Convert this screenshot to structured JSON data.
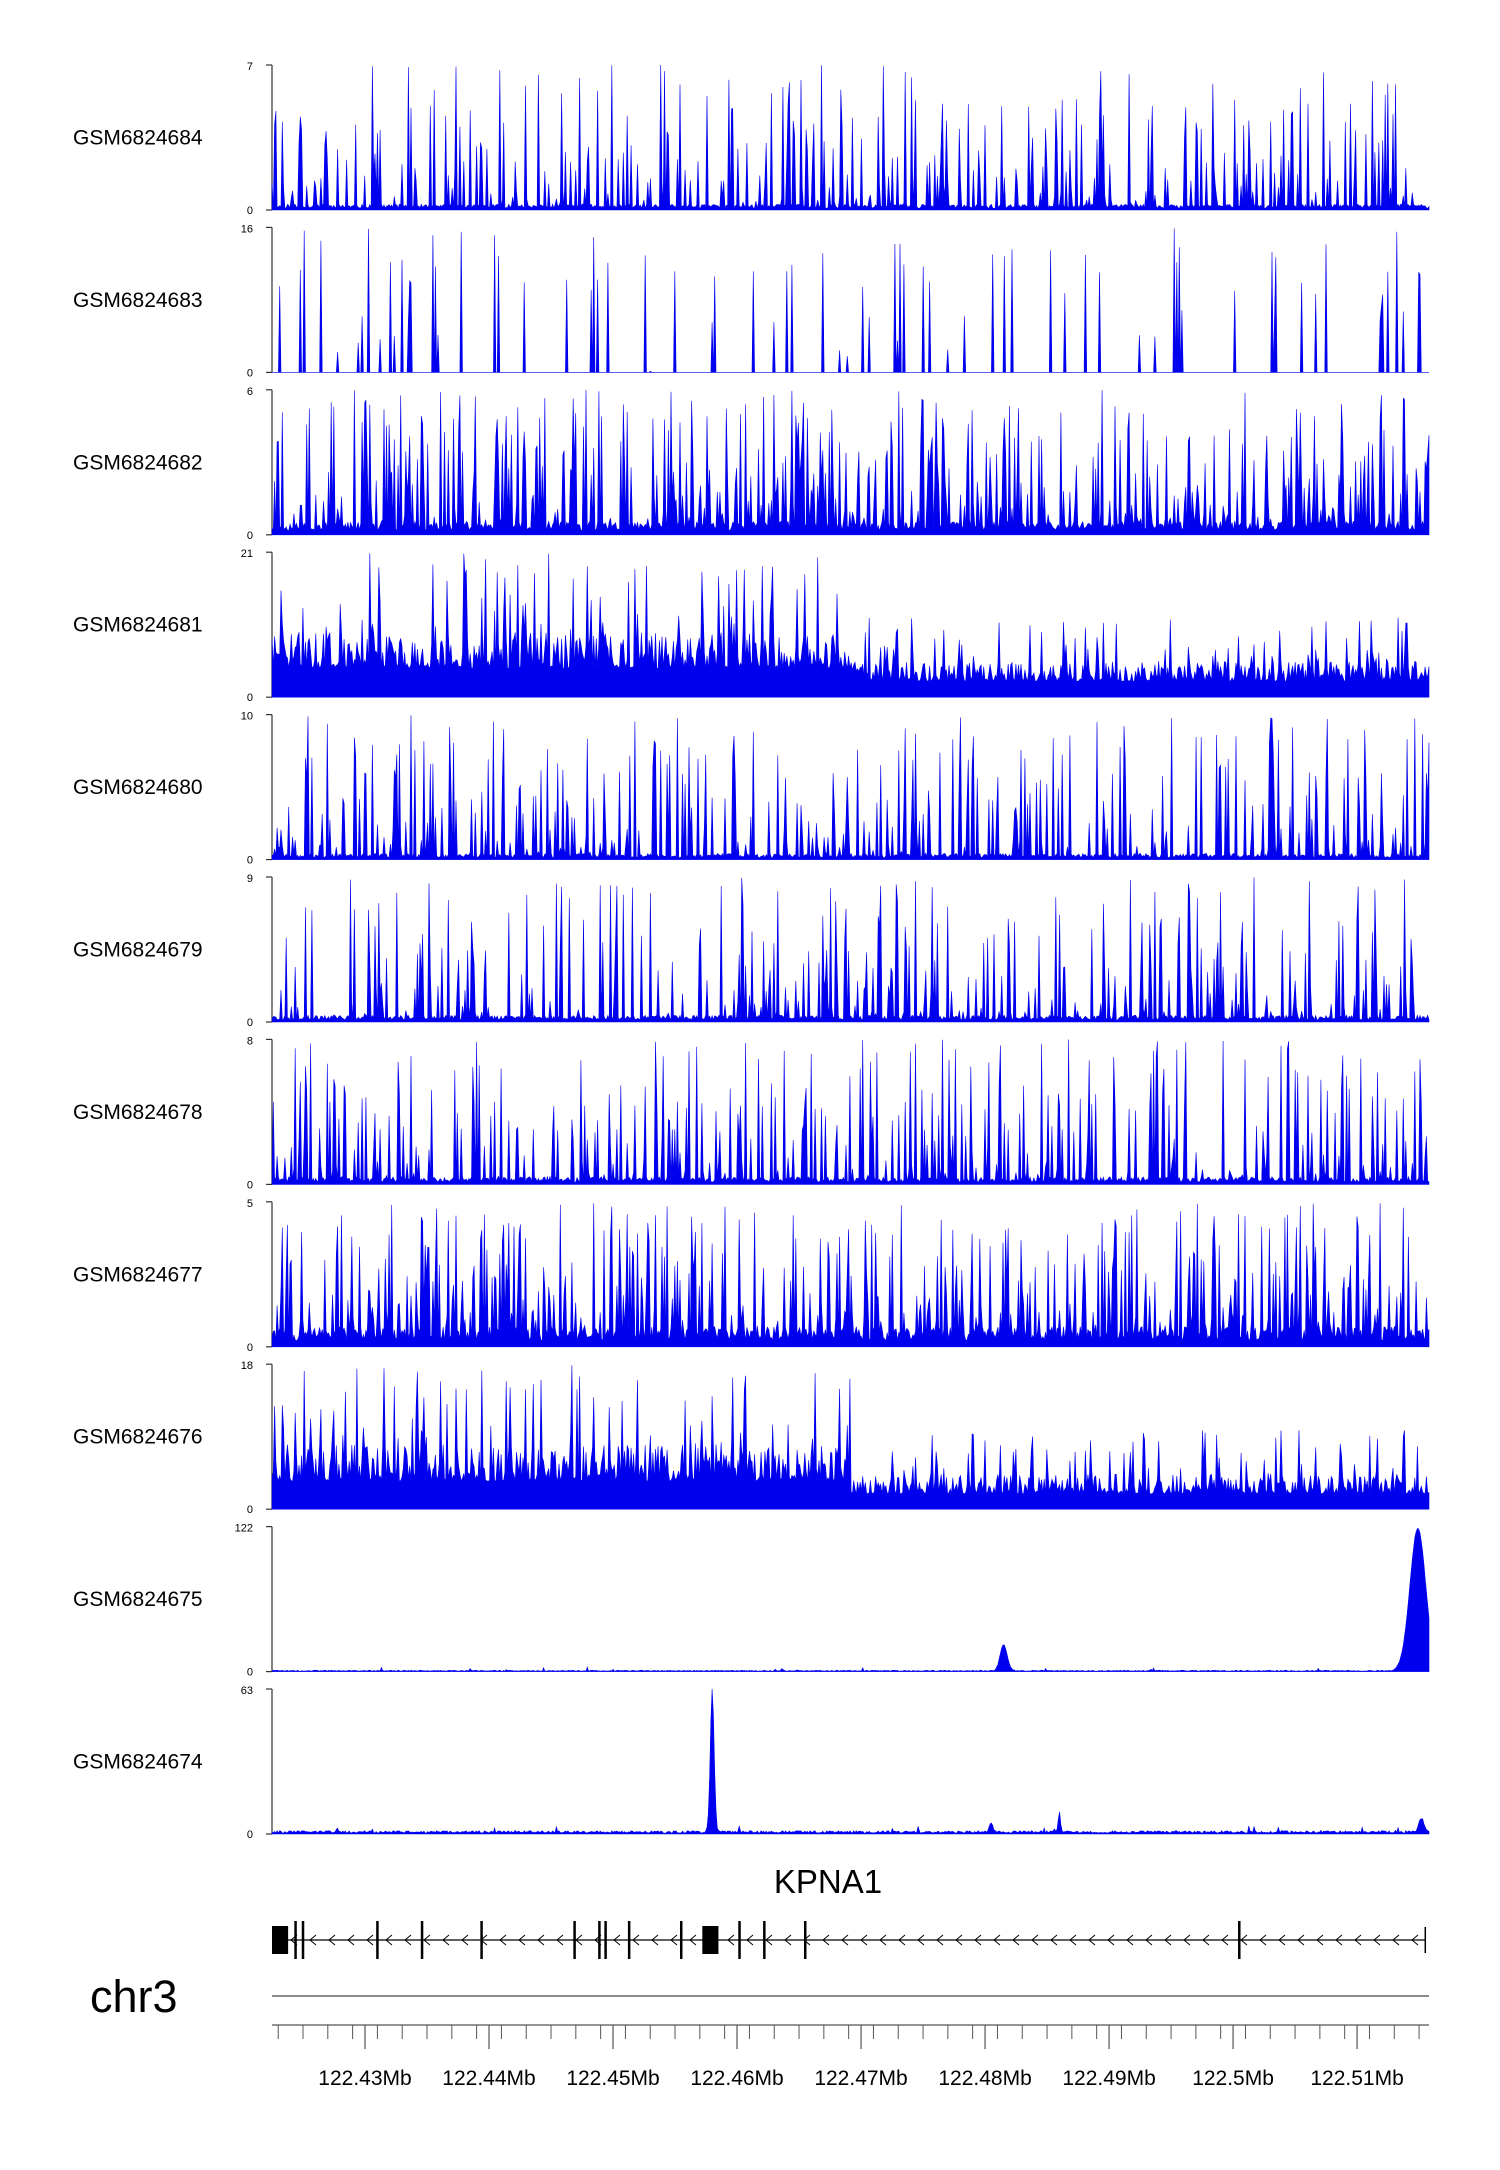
{
  "colors": {
    "signal": "#0000ee",
    "axis": "#333333",
    "gene": "#000000",
    "tick": "#555555"
  },
  "chart_data": {
    "type": "area",
    "chromosome": "chr3",
    "x_unit": "Mb",
    "xlim": [
      122.4225,
      122.5158
    ],
    "x_ticks": [
      {
        "value": 122.43,
        "label": "122.43Mb"
      },
      {
        "value": 122.44,
        "label": "122.44Mb"
      },
      {
        "value": 122.45,
        "label": "122.45Mb"
      },
      {
        "value": 122.46,
        "label": "122.46Mb"
      },
      {
        "value": 122.47,
        "label": "122.47Mb"
      },
      {
        "value": 122.48,
        "label": "122.48Mb"
      },
      {
        "value": 122.49,
        "label": "122.49Mb"
      },
      {
        "value": 122.5,
        "label": "122.5Mb"
      },
      {
        "value": 122.51,
        "label": "122.51Mb"
      }
    ],
    "tracks": [
      {
        "name": "GSM6824684",
        "ymin": 0,
        "ymax": 7,
        "ymin_label": "0",
        "ymax_label": "7",
        "baseline": 0.2,
        "peak_max": 7.0,
        "profile": "sparse",
        "seed": 11,
        "peaks": []
      },
      {
        "name": "GSM6824683",
        "ymin": 0,
        "ymax": 16,
        "ymin_label": "0",
        "ymax_label": "16",
        "baseline": 0.0,
        "peak_max": 16.0,
        "profile": "spiky",
        "seed": 23,
        "peaks": []
      },
      {
        "name": "GSM6824682",
        "ymin": 0,
        "ymax": 6,
        "ymin_label": "0",
        "ymax_label": "6",
        "baseline": 0.4,
        "peak_max": 6.0,
        "profile": "dense",
        "seed": 37,
        "peaks": []
      },
      {
        "name": "GSM6824681",
        "ymin": 0,
        "ymax": 21,
        "ymin_label": "0",
        "ymax_label": "21",
        "baseline": 3.0,
        "peak_max": 21.0,
        "profile": "decline",
        "seed": 41,
        "peaks": []
      },
      {
        "name": "GSM6824680",
        "ymin": 0,
        "ymax": 10,
        "ymin_label": "0",
        "ymax_label": "10",
        "baseline": 0.3,
        "peak_max": 10.0,
        "profile": "sparse",
        "seed": 53,
        "peaks": []
      },
      {
        "name": "GSM6824679",
        "ymin": 0,
        "ymax": 9,
        "ymin_label": "0",
        "ymax_label": "9",
        "baseline": 0.3,
        "peak_max": 9.0,
        "profile": "sparse",
        "seed": 67,
        "peaks": []
      },
      {
        "name": "GSM6824678",
        "ymin": 0,
        "ymax": 8,
        "ymin_label": "0",
        "ymax_label": "8",
        "baseline": 0.3,
        "peak_max": 8.0,
        "profile": "sparse",
        "seed": 71,
        "peaks": []
      },
      {
        "name": "GSM6824677",
        "ymin": 0,
        "ymax": 5,
        "ymin_label": "0",
        "ymax_label": "5",
        "baseline": 0.5,
        "peak_max": 5.0,
        "profile": "dense",
        "seed": 83,
        "peaks": []
      },
      {
        "name": "GSM6824676",
        "ymin": 0,
        "ymax": 18,
        "ymin_label": "0",
        "ymax_label": "18",
        "baseline": 2.5,
        "peak_max": 18.0,
        "profile": "decline",
        "seed": 97,
        "peaks": []
      },
      {
        "name": "GSM6824675",
        "ymin": 0,
        "ymax": 122,
        "ymin_label": "0",
        "ymax_label": "122",
        "baseline": 1.0,
        "peak_max": 3.0,
        "profile": "flat",
        "seed": 101,
        "peaks": [
          {
            "x": 122.4815,
            "y": 22,
            "w": 0.0004
          },
          {
            "x": 122.5149,
            "y": 120,
            "w": 0.0009
          }
        ]
      },
      {
        "name": "GSM6824674",
        "ymin": 0,
        "ymax": 63,
        "ymin_label": "0",
        "ymax_label": "63",
        "baseline": 1.2,
        "peak_max": 3.0,
        "profile": "flat",
        "seed": 113,
        "peaks": [
          {
            "x": 122.458,
            "y": 62,
            "w": 0.00022
          },
          {
            "x": 122.486,
            "y": 9,
            "w": 0.00012
          },
          {
            "x": 122.4805,
            "y": 4,
            "w": 0.0002
          },
          {
            "x": 122.5152,
            "y": 6,
            "w": 0.0003
          }
        ]
      }
    ],
    "gene": {
      "name": "KPNA1",
      "strand": "-",
      "start": 122.4225,
      "end": 122.5155,
      "exons": [
        {
          "start": 122.4225,
          "end": 122.4238,
          "coding": true
        },
        {
          "start": 122.4243,
          "end": 122.4245,
          "coding": false
        },
        {
          "start": 122.4249,
          "end": 122.4251,
          "coding": false
        },
        {
          "start": 122.4309,
          "end": 122.4311,
          "coding": false
        },
        {
          "start": 122.4345,
          "end": 122.4347,
          "coding": false
        },
        {
          "start": 122.4393,
          "end": 122.4395,
          "coding": false
        },
        {
          "start": 122.4468,
          "end": 122.447,
          "coding": false
        },
        {
          "start": 122.4488,
          "end": 122.449,
          "coding": false
        },
        {
          "start": 122.4493,
          "end": 122.4495,
          "coding": false
        },
        {
          "start": 122.4512,
          "end": 122.4514,
          "coding": false
        },
        {
          "start": 122.4554,
          "end": 122.4556,
          "coding": false
        },
        {
          "start": 122.4572,
          "end": 122.4585,
          "coding": true
        },
        {
          "start": 122.4601,
          "end": 122.4603,
          "coding": false
        },
        {
          "start": 122.4621,
          "end": 122.4623,
          "coding": false
        },
        {
          "start": 122.4654,
          "end": 122.4656,
          "coding": false
        },
        {
          "start": 122.5004,
          "end": 122.5006,
          "coding": false
        }
      ]
    }
  }
}
